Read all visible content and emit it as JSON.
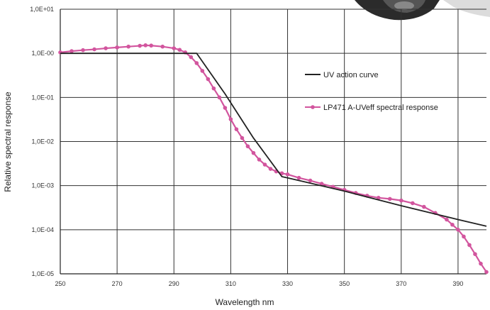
{
  "chart_data": {
    "type": "line",
    "xlabel": "Wavelength nm",
    "ylabel": "Relative spectral response",
    "xlim": [
      250,
      400
    ],
    "ylim": [
      1e-05,
      10
    ],
    "y_scale": "log",
    "grid": true,
    "legend_position": "right",
    "x_ticks": [
      250,
      270,
      290,
      310,
      330,
      350,
      370,
      390
    ],
    "x_tick_labels": [
      "250",
      "270",
      "290",
      "310",
      "330",
      "350",
      "370",
      "390"
    ],
    "y_ticks": [
      10,
      1,
      0.1,
      0.01,
      0.001,
      0.0001,
      1e-05
    ],
    "y_tick_labels": [
      "1,0E+01",
      "1,0E-00",
      "1,0E-01",
      "1,0E-02",
      "1,0E-03",
      "1,0E-04",
      "1,0E-05"
    ],
    "series": [
      {
        "name": "UV action curve",
        "color": "#222222",
        "marker": "none",
        "x": [
          250,
          298,
          308,
          318,
          328,
          330,
          350,
          370,
          390,
          400
        ],
        "y": [
          1.0,
          1.0,
          0.12,
          0.012,
          0.0016,
          0.0015,
          0.00075,
          0.00035,
          0.00017,
          0.00012
        ]
      },
      {
        "name": "LP471 A-UVeff spectral response",
        "color": "#d2559e",
        "marker": "circle",
        "x": [
          250,
          254,
          258,
          262,
          266,
          270,
          274,
          278,
          280,
          282,
          286,
          290,
          292,
          294,
          296,
          298,
          300,
          302,
          304,
          306,
          308,
          310,
          312,
          314,
          316,
          318,
          320,
          322,
          324,
          326,
          328,
          330,
          334,
          338,
          342,
          346,
          350,
          354,
          358,
          362,
          366,
          370,
          374,
          378,
          382,
          386,
          388,
          390,
          392,
          394,
          396,
          398,
          400
        ],
        "y": [
          1.05,
          1.12,
          1.18,
          1.23,
          1.3,
          1.36,
          1.42,
          1.48,
          1.52,
          1.5,
          1.42,
          1.3,
          1.2,
          1.05,
          0.82,
          0.6,
          0.4,
          0.26,
          0.16,
          0.1,
          0.058,
          0.032,
          0.019,
          0.012,
          0.0078,
          0.0055,
          0.0039,
          0.003,
          0.0024,
          0.0021,
          0.0019,
          0.0018,
          0.0015,
          0.0013,
          0.0011,
          0.00094,
          0.0008,
          0.00068,
          0.00059,
          0.00053,
          0.0005,
          0.00046,
          0.0004,
          0.00033,
          0.00024,
          0.00017,
          0.00013,
          0.0001,
          7e-05,
          4.5e-05,
          2.8e-05,
          1.7e-05,
          1.1e-05
        ]
      }
    ]
  },
  "colors": {
    "grid": "#333333",
    "axis": "#222222",
    "action_curve": "#222222",
    "spectral_response": "#d2559e"
  }
}
